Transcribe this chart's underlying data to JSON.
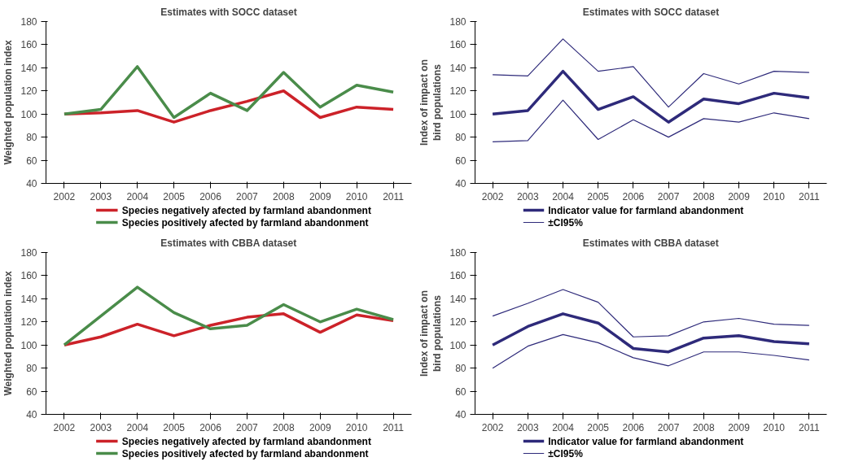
{
  "chart_data": [
    {
      "type": "line",
      "title": "Estimates with SOCC dataset",
      "ylabel": "Weighted population index",
      "categories": [
        "2002",
        "2003",
        "2004",
        "2005",
        "2006",
        "2007",
        "2008",
        "2009",
        "2010",
        "2011"
      ],
      "ylim": [
        40,
        180
      ],
      "yticks": [
        40,
        60,
        80,
        100,
        120,
        140,
        160,
        180
      ],
      "legend": "bottom",
      "series": [
        {
          "name": "Species negatively afected by farmland abandonment",
          "color": "#cc2229",
          "values": [
            100,
            101,
            103,
            93,
            103,
            111,
            120,
            97,
            106,
            104
          ]
        },
        {
          "name": "Species positively afected by farmland abandonment",
          "color": "#4a8c4a",
          "values": [
            100,
            104,
            141,
            97,
            118,
            103,
            136,
            106,
            125,
            119
          ]
        }
      ]
    },
    {
      "type": "line",
      "title": "Estimates with SOCC dataset",
      "ylabel": "Index of impact on bird populations",
      "categories": [
        "2002",
        "2003",
        "2004",
        "2005",
        "2006",
        "2007",
        "2008",
        "2009",
        "2010",
        "2011"
      ],
      "ylim": [
        40,
        180
      ],
      "yticks": [
        40,
        60,
        80,
        100,
        120,
        140,
        160,
        180
      ],
      "legend": "bottom",
      "series": [
        {
          "name": "Indicator value for farmland abandonment",
          "color": "#2e2a7a",
          "values": [
            100,
            103,
            137,
            104,
            115,
            93,
            113,
            109,
            118,
            114
          ]
        },
        {
          "name": "±CI95%",
          "color": "#2e2a7a",
          "values": [
            134,
            133,
            165,
            137,
            141,
            106,
            135,
            126,
            137,
            136
          ]
        },
        {
          "color": "#2e2a7a",
          "values": [
            76,
            77,
            112,
            78,
            95,
            80,
            96,
            93,
            101,
            96
          ]
        }
      ]
    },
    {
      "type": "line",
      "title": "Estimates with CBBA dataset",
      "ylabel": "Weighted population index",
      "categories": [
        "2002",
        "2003",
        "2004",
        "2005",
        "2006",
        "2007",
        "2008",
        "2009",
        "2010",
        "2011"
      ],
      "ylim": [
        40,
        180
      ],
      "yticks": [
        40,
        60,
        80,
        100,
        120,
        140,
        160,
        180
      ],
      "legend": "bottom",
      "series": [
        {
          "name": "Species negatively afected by farmland abandonment",
          "color": "#cc2229",
          "values": [
            100,
            107,
            118,
            108,
            117,
            124,
            127,
            111,
            126,
            121
          ]
        },
        {
          "name": "Species positively afected by farmland abandonment",
          "color": "#4a8c4a",
          "values": [
            100,
            125,
            150,
            128,
            114,
            117,
            135,
            120,
            131,
            122
          ]
        }
      ]
    },
    {
      "type": "line",
      "title": "Estimates with CBBA dataset",
      "ylabel": "Index of impact on bird populations",
      "categories": [
        "2002",
        "2003",
        "2004",
        "2005",
        "2006",
        "2007",
        "2008",
        "2009",
        "2010",
        "2011"
      ],
      "ylim": [
        40,
        180
      ],
      "yticks": [
        40,
        60,
        80,
        100,
        120,
        140,
        160,
        180
      ],
      "legend": "bottom",
      "series": [
        {
          "name": "Indicator value for farmland abandonment",
          "color": "#2e2a7a",
          "values": [
            100,
            116,
            127,
            119,
            97,
            94,
            106,
            108,
            103,
            101
          ]
        },
        {
          "name": "±CI95%",
          "color": "#2e2a7a",
          "values": [
            125,
            136,
            148,
            137,
            107,
            108,
            120,
            123,
            118,
            117
          ]
        },
        {
          "color": "#2e2a7a",
          "values": [
            80,
            99,
            109,
            102,
            89,
            82,
            94,
            94,
            91,
            87
          ]
        }
      ]
    }
  ]
}
